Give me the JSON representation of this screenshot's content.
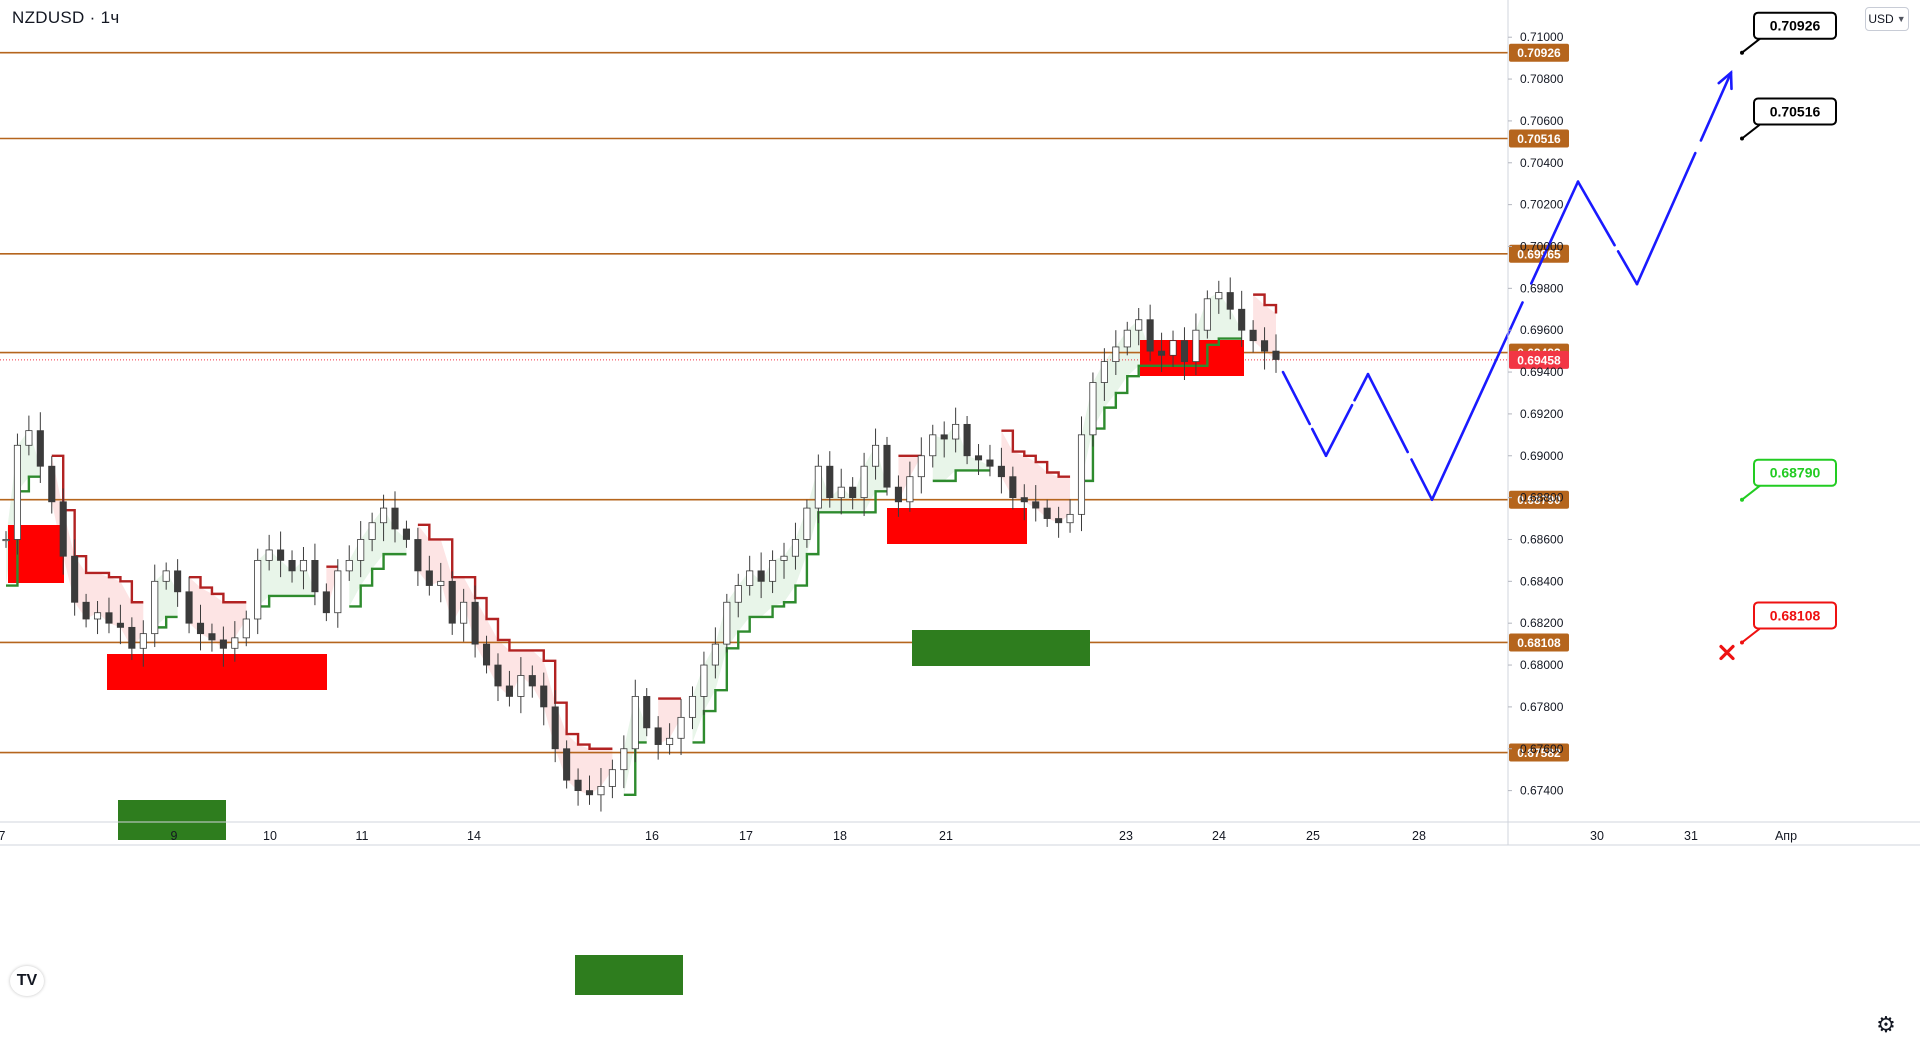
{
  "header": {
    "symbol": "NZDUSD · 1ч",
    "currency_button": "USD",
    "currency_chevron": "chevron-down-icon",
    "logo_text": "TV"
  },
  "footer": {
    "settings_icon": "gear-icon",
    "settings_glyph": "⚙"
  },
  "colors": {
    "level_line": "#b5651d",
    "level_tag_bg": "#b5651d",
    "price_tag_bg": "#f23645",
    "bull_candle": "#26a69a",
    "bear_candle": "#ef5350",
    "candle_body_dark": "#3b3b3b",
    "supply_zone": "#ff0000",
    "demand_zone": "#2e7d1e",
    "stop_up": "#2e8b2e",
    "stop_down": "#b22222",
    "fill_up": "#e8f5e9",
    "fill_down": "#fde4e4",
    "projection": "#1a1aff",
    "axis_text": "#131722",
    "callout_black": "#000000",
    "callout_green": "#22cc22",
    "callout_red": "#ee1111",
    "cross": "#ee1111"
  },
  "chart_data": {
    "type": "candlestick",
    "title": "NZDUSD · 1ч",
    "y_range": [
      0.6725,
      0.7113
    ],
    "y_ticks": [
      "0.71000",
      "0.70800",
      "0.70600",
      "0.70400",
      "0.70200",
      "0.70000",
      "0.69800",
      "0.69600",
      "0.69400",
      "0.69200",
      "0.69000",
      "0.68800",
      "0.68600",
      "0.68400",
      "0.68200",
      "0.68000",
      "0.67800",
      "0.67600",
      "0.67400"
    ],
    "x_ticks": [
      "7",
      "9",
      "10",
      "11",
      "14",
      "16",
      "17",
      "18",
      "21",
      "23",
      "24",
      "25",
      "28",
      "30",
      "31",
      "Апр"
    ],
    "last_price": "0.69458",
    "levels": [
      "0.70926",
      "0.70516",
      "0.69965",
      "0.69493",
      "0.68790",
      "0.68108",
      "0.67582"
    ],
    "callouts": [
      {
        "text": "0.70926",
        "style": "black"
      },
      {
        "text": "0.70516",
        "style": "black"
      },
      {
        "text": "0.68790",
        "style": "green"
      },
      {
        "text": "0.68108",
        "style": "red"
      }
    ],
    "projection_path": [
      0.694,
      0.69,
      0.6939,
      0.6879,
      0.7031,
      0.6982,
      0.7083
    ],
    "candle_closes": [
      0.686,
      0.6905,
      0.6912,
      0.6895,
      0.6878,
      0.6852,
      0.683,
      0.6822,
      0.6825,
      0.682,
      0.6818,
      0.6808,
      0.6815,
      0.684,
      0.6845,
      0.6835,
      0.682,
      0.6815,
      0.6812,
      0.6808,
      0.6813,
      0.6822,
      0.685,
      0.6855,
      0.685,
      0.6845,
      0.685,
      0.6835,
      0.6825,
      0.6845,
      0.685,
      0.686,
      0.6868,
      0.6875,
      0.6865,
      0.686,
      0.6845,
      0.6838,
      0.684,
      0.682,
      0.683,
      0.681,
      0.68,
      0.679,
      0.6785,
      0.6795,
      0.679,
      0.678,
      0.676,
      0.6745,
      0.674,
      0.6738,
      0.6742,
      0.675,
      0.676,
      0.6785,
      0.677,
      0.6762,
      0.6765,
      0.6775,
      0.6785,
      0.68,
      0.681,
      0.683,
      0.6838,
      0.6845,
      0.684,
      0.685,
      0.6852,
      0.686,
      0.6875,
      0.6895,
      0.688,
      0.6885,
      0.688,
      0.6895,
      0.6905,
      0.6885,
      0.6878,
      0.689,
      0.69,
      0.691,
      0.6908,
      0.6915,
      0.69,
      0.6898,
      0.6895,
      0.689,
      0.688,
      0.6878,
      0.6875,
      0.687,
      0.6868,
      0.6872,
      0.691,
      0.6935,
      0.6945,
      0.6952,
      0.696,
      0.6965,
      0.695,
      0.6948,
      0.6955,
      0.6945,
      0.696,
      0.6975,
      0.6978,
      0.697,
      0.696,
      0.6955,
      0.695,
      0.6946
    ]
  }
}
